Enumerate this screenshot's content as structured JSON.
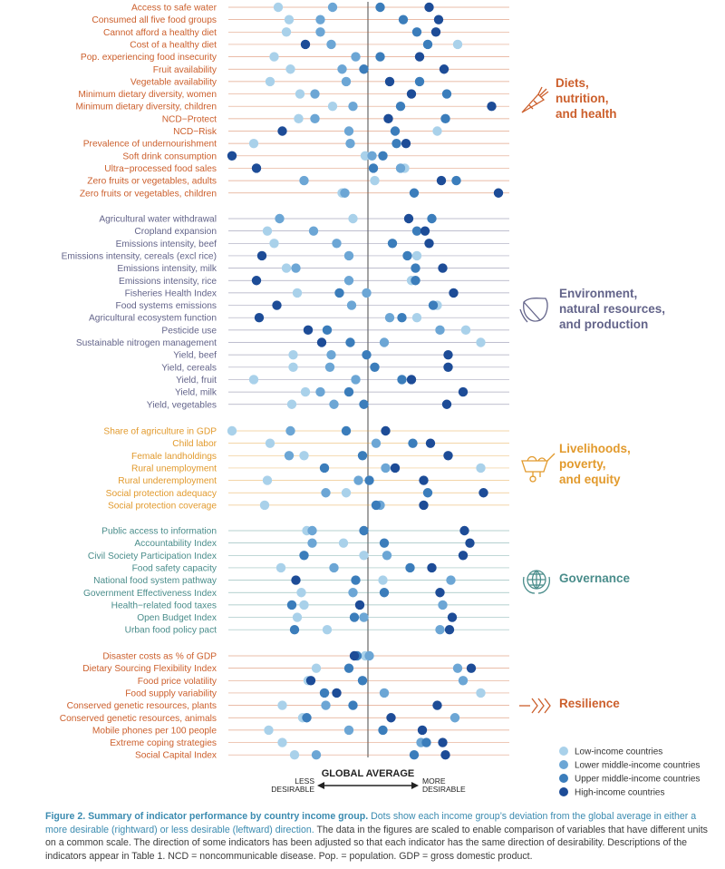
{
  "chart_data": {
    "type": "scatter",
    "reference_line_label": "GLOBAL AVERAGE",
    "direction_labels": {
      "left": [
        "LESS",
        "DESIRABLE"
      ],
      "right": [
        "MORE",
        "DESIRABLE"
      ]
    },
    "x_range": [
      -1.0,
      1.0
    ],
    "series": [
      {
        "name": "Low-income countries",
        "color": "#a9d1ea"
      },
      {
        "name": "Lower middle-income countries",
        "color": "#6ca6d5"
      },
      {
        "name": "Upper middle-income countries",
        "color": "#3b7dbb"
      },
      {
        "name": "High-income countries",
        "color": "#1d4c97"
      }
    ],
    "groups": [
      {
        "label": [
          "Diets,",
          "nutrition,",
          "and health"
        ],
        "icon": "carrot-icon",
        "color": "#cc5f2c",
        "indicators": [
          {
            "name": "Access to safe water",
            "values": [
              -0.66,
              -0.26,
              0.09,
              0.45
            ]
          },
          {
            "name": "Consumed all five food groups",
            "values": [
              -0.58,
              -0.35,
              0.26,
              0.52
            ]
          },
          {
            "name": "Cannot afford a healthy diet",
            "values": [
              -0.6,
              -0.35,
              0.36,
              0.5
            ]
          },
          {
            "name": "Cost of a healthy diet",
            "values": [
              0.66,
              -0.27,
              0.44,
              -0.46
            ]
          },
          {
            "name": "Pop. experiencing food insecurity",
            "values": [
              -0.69,
              -0.09,
              0.09,
              0.38
            ]
          },
          {
            "name": "Fruit availability",
            "values": [
              -0.57,
              -0.19,
              -0.03,
              0.56
            ]
          },
          {
            "name": "Vegetable availability",
            "values": [
              -0.72,
              -0.16,
              0.38,
              0.16
            ]
          },
          {
            "name": "Minimum dietary diversity, women",
            "values": [
              -0.5,
              -0.39,
              0.58,
              0.32
            ]
          },
          {
            "name": "Minimum dietary diversity, children",
            "values": [
              -0.26,
              -0.11,
              0.24,
              0.91
            ]
          },
          {
            "name": "NCD−Protect",
            "values": [
              -0.51,
              -0.39,
              0.57,
              0.15
            ]
          },
          {
            "name": "NCD−Risk",
            "values": [
              0.51,
              -0.14,
              0.2,
              -0.63
            ]
          },
          {
            "name": "Prevalence of undernourishment",
            "values": [
              -0.84,
              -0.13,
              0.21,
              0.28
            ]
          },
          {
            "name": "Soft drink consumption",
            "values": [
              -0.02,
              0.03,
              0.11,
              -1.0
            ]
          },
          {
            "name": "Ultra−processed food sales",
            "values": [
              0.27,
              0.24,
              0.04,
              -0.82
            ]
          },
          {
            "name": "Zero fruits or vegetables, adults",
            "values": [
              0.05,
              -0.47,
              0.65,
              0.54
            ]
          },
          {
            "name": "Zero fruits or vegetables, children",
            "values": [
              -0.19,
              -0.17,
              0.34,
              0.96
            ]
          }
        ]
      },
      {
        "label": [
          "Environment,",
          "natural resources,",
          "and production"
        ],
        "icon": "leaf-icon",
        "color": "#63648a",
        "indicators": [
          {
            "name": "Agricultural water withdrawal",
            "values": [
              -0.11,
              -0.65,
              0.47,
              0.3
            ]
          },
          {
            "name": "Cropland expansion",
            "values": [
              -0.74,
              -0.4,
              0.36,
              0.42
            ]
          },
          {
            "name": "Emissions intensity, beef",
            "values": [
              -0.69,
              -0.23,
              0.18,
              0.45
            ]
          },
          {
            "name": "Emissions intensity, cereals (excl rice)",
            "values": [
              0.36,
              -0.14,
              0.29,
              -0.78
            ]
          },
          {
            "name": "Emissions intensity, milk",
            "values": [
              -0.6,
              -0.53,
              0.35,
              0.55
            ]
          },
          {
            "name": "Emissions intensity, rice",
            "values": [
              0.32,
              -0.14,
              0.35,
              -0.82
            ]
          },
          {
            "name": "Fisheries Health Index",
            "values": [
              -0.52,
              -0.01,
              -0.21,
              0.63
            ]
          },
          {
            "name": "Food systems emissions",
            "values": [
              0.51,
              -0.12,
              0.48,
              -0.67
            ]
          },
          {
            "name": "Agricultural ecosystem function",
            "values": [
              0.36,
              0.16,
              0.25,
              -0.8
            ]
          },
          {
            "name": "Pesticide use",
            "values": [
              0.72,
              0.53,
              -0.3,
              -0.44
            ]
          },
          {
            "name": "Sustainable nitrogen management",
            "values": [
              0.83,
              0.12,
              -0.13,
              -0.34
            ]
          },
          {
            "name": "Yield, beef",
            "values": [
              -0.55,
              -0.27,
              -0.01,
              0.59
            ]
          },
          {
            "name": "Yield, cereals",
            "values": [
              -0.55,
              -0.28,
              0.05,
              0.59
            ]
          },
          {
            "name": "Yield, fruit",
            "values": [
              -0.84,
              -0.09,
              0.25,
              0.32
            ]
          },
          {
            "name": "Yield, milk",
            "values": [
              -0.46,
              -0.35,
              -0.14,
              0.7
            ]
          },
          {
            "name": "Yield, vegetables",
            "values": [
              -0.56,
              -0.25,
              -0.03,
              0.58
            ]
          }
        ]
      },
      {
        "label": [
          "Livelihoods,",
          "poverty,",
          "and equity"
        ],
        "icon": "wheelbarrow-icon",
        "color": "#e29a2d",
        "indicators": [
          {
            "name": "Share of agriculture in GDP",
            "values": [
              -1.0,
              -0.57,
              -0.16,
              0.13
            ]
          },
          {
            "name": "Child labor",
            "values": [
              -0.72,
              0.06,
              0.33,
              0.46
            ]
          },
          {
            "name": "Female landholdings",
            "values": [
              -0.47,
              -0.58,
              -0.04,
              0.59
            ]
          },
          {
            "name": "Rural unemployment",
            "values": [
              0.83,
              0.13,
              -0.32,
              0.2
            ]
          },
          {
            "name": "Rural underemployment",
            "values": [
              -0.74,
              -0.07,
              0.01,
              0.41
            ]
          },
          {
            "name": "Social protection adequacy",
            "values": [
              -0.16,
              -0.31,
              0.44,
              0.85
            ]
          },
          {
            "name": "Social protection coverage",
            "values": [
              -0.76,
              0.09,
              0.06,
              0.41
            ]
          }
        ]
      },
      {
        "label": [
          "Governance"
        ],
        "icon": "globe-icon",
        "color": "#4a8d8b",
        "indicators": [
          {
            "name": "Public access to information",
            "values": [
              -0.45,
              -0.41,
              -0.03,
              0.71
            ]
          },
          {
            "name": "Accountability Index",
            "values": [
              -0.18,
              -0.41,
              0.12,
              0.75
            ]
          },
          {
            "name": "Civil Society Participation Index",
            "values": [
              -0.03,
              0.14,
              -0.47,
              0.7
            ]
          },
          {
            "name": "Food safety capacity",
            "values": [
              -0.64,
              -0.25,
              0.31,
              0.47
            ]
          },
          {
            "name": "National food system pathway",
            "values": [
              0.11,
              0.61,
              -0.09,
              -0.53
            ]
          },
          {
            "name": "Government Effectiveness Index",
            "values": [
              -0.49,
              -0.11,
              0.12,
              0.53
            ]
          },
          {
            "name": "Health−related food taxes",
            "values": [
              -0.47,
              0.55,
              -0.56,
              -0.06
            ]
          },
          {
            "name": "Open Budget Index",
            "values": [
              -0.52,
              -0.03,
              -0.1,
              0.62
            ]
          },
          {
            "name": "Urban food policy pact",
            "values": [
              -0.3,
              0.53,
              -0.54,
              0.6
            ]
          }
        ]
      },
      {
        "label": [
          "Resilience"
        ],
        "icon": "chevrons-right-icon",
        "color": "#cc5f2c",
        "indicators": [
          {
            "name": "Disaster costs as % of GDP",
            "values": [
              -0.02,
              0.01,
              -0.08,
              -0.1
            ]
          },
          {
            "name": "Dietary Sourcing Flexibility Index",
            "values": [
              -0.38,
              0.66,
              -0.14,
              0.76
            ]
          },
          {
            "name": "Food price volatility",
            "values": [
              -0.44,
              0.7,
              -0.04,
              -0.42
            ]
          },
          {
            "name": "Food supply variability",
            "values": [
              0.83,
              0.12,
              -0.32,
              -0.23
            ]
          },
          {
            "name": "Conserved genetic resources, plants",
            "values": [
              -0.63,
              -0.31,
              -0.11,
              0.51
            ]
          },
          {
            "name": "Conserved genetic resources, animals",
            "values": [
              -0.48,
              0.64,
              -0.45,
              0.17
            ]
          },
          {
            "name": "Mobile phones per 100 people",
            "values": [
              -0.73,
              -0.14,
              0.11,
              0.4
            ]
          },
          {
            "name": "Extreme coping strategies",
            "values": [
              -0.63,
              0.39,
              0.43,
              0.55
            ]
          },
          {
            "name": "Social Capital Index",
            "values": [
              -0.54,
              -0.38,
              0.34,
              0.57
            ]
          }
        ]
      }
    ]
  },
  "caption": {
    "title": "Figure 2. Summary of indicator performance by country income group.",
    "lead": "Dots show each income group’s deviation from the global average in either a more desirable (rightward) or less desirable (leftward) direction.",
    "body": "The data in the figures are scaled to enable comparison of variables that have different units on a common scale. The direction of some indicators has been adjusted so that each indicator has the same direction of desirability. Descriptions of the indicators appear in Table 1. NCD = noncommunicable disease. Pop. = population. GDP = gross domestic product."
  }
}
